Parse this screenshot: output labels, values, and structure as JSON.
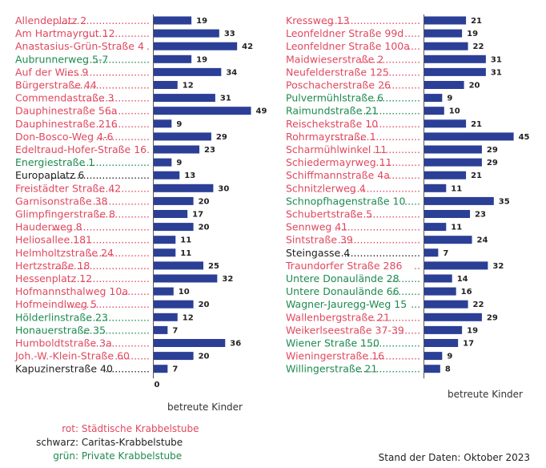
{
  "colors": {
    "rot": "#e0485e",
    "schwarz": "#222222",
    "gruen": "#1e8a4f",
    "bar": "#2b3f96"
  },
  "legend": [
    {
      "key": "rot:",
      "label": "Städtische Krabbelstube",
      "color": "rot"
    },
    {
      "key": "schwarz:",
      "label": "Caritas-Krabbelstube",
      "color": "schwarz"
    },
    {
      "key": "grün:",
      "label": "Private Krabbelstube",
      "color": "gruen"
    }
  ],
  "stand": "Stand der Daten: Oktober 2023",
  "chart_data": [
    {
      "type": "bar",
      "orientation": "horizontal",
      "xlabel": "betreute Kinder",
      "zero_label": "0",
      "categories": [
        "Allendeplatz 2",
        "Am Hartmayrgut 12",
        "Anastasius-Grün-Straße 4",
        "Aubrunnerweg 5-7",
        "Auf der Wies 9",
        "Bürgerstraße 44",
        "Commendastraße 3",
        "Dauphinestraße 56a",
        "Dauphinestraße 216",
        "Don-Bosco-Weg 4-6",
        "Edeltraud-Hofer-Straße 16",
        "Energiestraße 1",
        "Europaplatz 6",
        "Freistädter Straße 42",
        "Garnisonstraße 38",
        "Glimpfingerstraße 8",
        "Hauderweg 8",
        "Heliosallee 181",
        "Helmholtzstraße 24",
        "Hertzstraße 18",
        "Hessenplatz 12",
        "Hofmannsthalweg 10a",
        "Hofmeindlweg 5",
        "Hölderlinstraße 23",
        "Honauerstraße 35",
        "Humboldtstraße 3a",
        "Joh.-W.-Klein-Straße 60",
        "Kapuzinerstraße 40"
      ],
      "dots": [
        ".............................",
        ".....................",
        ".",
        ".....................",
        "...........................",
        "........................",
        "......................",
        "..............",
        "...................",
        ".................",
        ".",
        "......................",
        "...............................",
        "..................",
        "...................",
        ".................",
        "................................",
        "..........................",
        "...................",
        "................................",
        "..........................",
        ".........",
        "............................",
        ".....................",
        ".....................",
        "..................",
        "...........",
        ".............."
      ],
      "values": [
        19,
        33,
        42,
        19,
        34,
        12,
        31,
        49,
        9,
        29,
        23,
        9,
        13,
        30,
        20,
        17,
        20,
        11,
        11,
        25,
        32,
        10,
        20,
        12,
        7,
        36,
        20,
        7
      ],
      "types": [
        "rot",
        "rot",
        "rot",
        "gruen",
        "rot",
        "rot",
        "rot",
        "rot",
        "rot",
        "rot",
        "rot",
        "gruen",
        "schwarz",
        "rot",
        "rot",
        "rot",
        "rot",
        "rot",
        "rot",
        "rot",
        "rot",
        "rot",
        "rot",
        "gruen",
        "gruen",
        "rot",
        "rot",
        "schwarz"
      ]
    },
    {
      "type": "bar",
      "orientation": "horizontal",
      "xlabel": "betreute Kinder",
      "categories": [
        "Kressweg 13",
        "Leonfeldner Straße 99d",
        "Leonfeldner Straße 100a",
        "Maidwieserstraße 2",
        "Neufelderstraße 125",
        "Poschacherstraße 26",
        "Pulvermühlstraße 6",
        "Raimundstraße 21",
        "Reischekstraße 10",
        "Rohrmayrstraße 1",
        "Scharmühlwinkel 11",
        "Schiedermayrweg 11",
        "Schiffmannstraße 4a",
        "Schnitzlerweg 4",
        "Schnopfhagenstraße 10",
        "Schubertstraße 5",
        "Sennweg 41",
        "Sintstraße 39",
        "Steingasse 4",
        "Traundorfer Straße 286",
        "Untere Donaulände 28",
        "Untere Donaulände 66",
        "Wagner-Jauregg-Weg 15",
        "Wallenbergstraße 21",
        "Weikerlseestraße 37-39",
        "Wiener Straße 150",
        "Wieningerstraße 16",
        "Willingerstraße 21"
      ],
      "dots": [
        "..............................",
        ".....",
        "....",
        "...................",
        "..............",
        "............",
        "...............",
        "...................",
        ".................",
        "............................",
        "...............",
        "..............",
        "...........",
        ".......................",
        ".....",
        "......................",
        "...........................",
        "..........................",
        "..........................",
        "..",
        "..........",
        ".........",
        "...",
        "................",
        ".........",
        "...................",
        ".................",
        "...................."
      ],
      "values": [
        21,
        19,
        22,
        31,
        31,
        20,
        9,
        10,
        21,
        45,
        29,
        29,
        21,
        11,
        35,
        23,
        11,
        24,
        7,
        32,
        14,
        16,
        22,
        29,
        19,
        17,
        9,
        8
      ],
      "types": [
        "rot",
        "rot",
        "rot",
        "rot",
        "rot",
        "rot",
        "gruen",
        "gruen",
        "rot",
        "rot",
        "rot",
        "rot",
        "rot",
        "rot",
        "gruen",
        "rot",
        "rot",
        "rot",
        "schwarz",
        "rot",
        "gruen",
        "gruen",
        "gruen",
        "rot",
        "rot",
        "gruen",
        "rot",
        "gruen"
      ]
    }
  ]
}
